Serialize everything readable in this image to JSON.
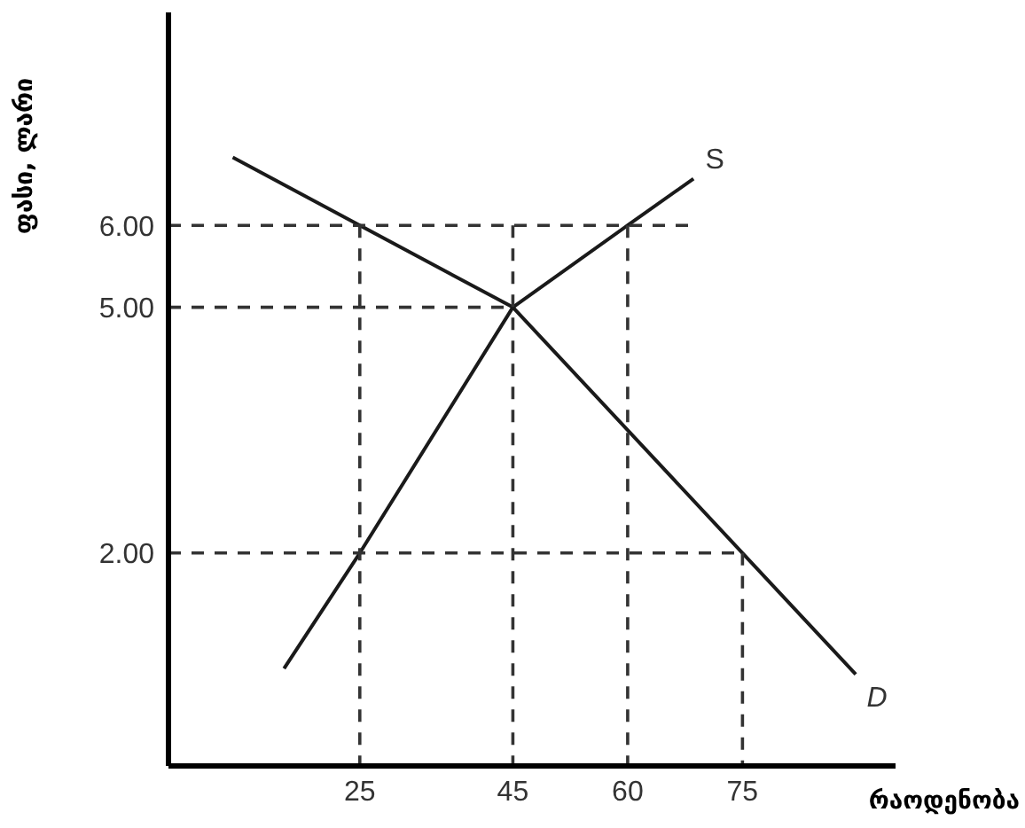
{
  "chart_data": {
    "type": "line",
    "xlabel": "რაოდენობა",
    "ylabel": "ფასი, ლარი",
    "xlim": [
      0,
      95
    ],
    "ylim": [
      -0.6,
      8.6
    ],
    "xticks": [
      25,
      45,
      60,
      75
    ],
    "yticks": [
      {
        "value": 2,
        "label": "2.00"
      },
      {
        "value": 5,
        "label": "5.00"
      },
      {
        "value": 6,
        "label": "6.00"
      }
    ],
    "grid": false,
    "legend": false,
    "series": [
      {
        "name": "D",
        "color": "#1a1a1a",
        "line_style": "solid",
        "x": [
          8.4,
          25,
          45,
          75,
          89.8
        ],
        "values": [
          6.83,
          6,
          5,
          2,
          0.52
        ]
      },
      {
        "name": "S",
        "color": "#1a1a1a",
        "line_style": "solid",
        "x": [
          15.1,
          25,
          45,
          60,
          68.6
        ],
        "values": [
          0.59,
          2,
          5,
          6,
          6.57
        ]
      },
      {
        "color": "#333333",
        "line_style": "dashed",
        "x": [
          0,
          68.6
        ],
        "values": [
          6,
          6
        ]
      },
      {
        "color": "#333333",
        "line_style": "dashed",
        "x": [
          0,
          45
        ],
        "values": [
          5,
          5
        ]
      },
      {
        "color": "#333333",
        "line_style": "dashed",
        "x": [
          0,
          75
        ],
        "values": [
          2,
          2
        ]
      },
      {
        "color": "#333333",
        "line_style": "dashed",
        "x": [
          25,
          25
        ],
        "values": [
          6,
          -0.6
        ]
      },
      {
        "color": "#333333",
        "line_style": "dashed",
        "x": [
          45,
          45
        ],
        "values": [
          6,
          -0.6
        ]
      },
      {
        "color": "#333333",
        "line_style": "dashed",
        "x": [
          60,
          60
        ],
        "values": [
          6,
          -0.6
        ]
      },
      {
        "color": "#333333",
        "line_style": "dashed",
        "x": [
          75,
          75
        ],
        "values": [
          2,
          -0.6
        ]
      }
    ]
  }
}
